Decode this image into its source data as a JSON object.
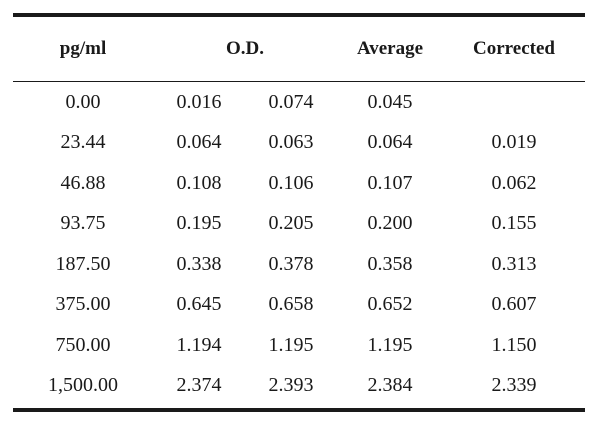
{
  "table": {
    "headers": {
      "concentration": "pg/ml",
      "od": "O.D.",
      "average": "Average",
      "corrected": "Corrected"
    },
    "rows": [
      {
        "conc": "0.00",
        "od1": "0.016",
        "od2": "0.074",
        "avg": "0.045",
        "corr": ""
      },
      {
        "conc": "23.44",
        "od1": "0.064",
        "od2": "0.063",
        "avg": "0.064",
        "corr": "0.019"
      },
      {
        "conc": "46.88",
        "od1": "0.108",
        "od2": "0.106",
        "avg": "0.107",
        "corr": "0.062"
      },
      {
        "conc": "93.75",
        "od1": "0.195",
        "od2": "0.205",
        "avg": "0.200",
        "corr": "0.155"
      },
      {
        "conc": "187.50",
        "od1": "0.338",
        "od2": "0.378",
        "avg": "0.358",
        "corr": "0.313"
      },
      {
        "conc": "375.00",
        "od1": "0.645",
        "od2": "0.658",
        "avg": "0.652",
        "corr": "0.607"
      },
      {
        "conc": "750.00",
        "od1": "1.194",
        "od2": "1.195",
        "avg": "1.195",
        "corr": "1.150"
      },
      {
        "conc": "1,500.00",
        "od1": "2.374",
        "od2": "2.393",
        "avg": "2.384",
        "corr": "2.339"
      }
    ]
  }
}
